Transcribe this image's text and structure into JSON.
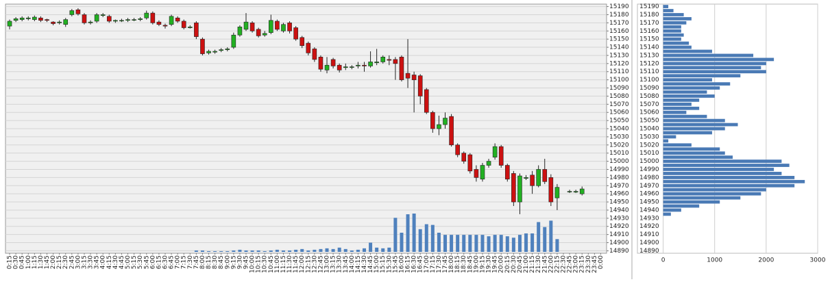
{
  "chart_data": [
    {
      "type": "candlestick",
      "categories": [
        "0:15",
        "0:30",
        "0:45",
        "1:00",
        "1:15",
        "1:30",
        "1:45",
        "2:00",
        "2:15",
        "2:30",
        "2:45",
        "3:00",
        "3:15",
        "3:30",
        "3:45",
        "4:00",
        "4:15",
        "4:30",
        "4:45",
        "5:00",
        "5:15",
        "5:30",
        "5:45",
        "6:00",
        "6:15",
        "6:30",
        "6:45",
        "7:00",
        "7:15",
        "7:30",
        "7:45",
        "8:00",
        "8:15",
        "8:30",
        "8:45",
        "9:00",
        "9:15",
        "9:30",
        "9:45",
        "10:00",
        "10:15",
        "10:30",
        "10:45",
        "11:00",
        "11:15",
        "11:30",
        "11:45",
        "12:00",
        "12:15",
        "12:30",
        "12:45",
        "13:00",
        "13:15",
        "13:30",
        "13:45",
        "14:00",
        "14:15",
        "14:30",
        "14:45",
        "15:00",
        "15:15",
        "15:30",
        "15:45",
        "16:00",
        "16:15",
        "16:30",
        "16:45",
        "17:00",
        "17:15",
        "17:30",
        "17:45",
        "18:00",
        "18:15",
        "18:30",
        "18:45",
        "19:00",
        "19:15",
        "19:30",
        "19:45",
        "20:00",
        "20:15",
        "20:30",
        "20:45",
        "21:00",
        "21:15",
        "21:30",
        "21:45",
        "22:00",
        "22:15",
        "22:30",
        "22:45",
        "23:00",
        "23:15",
        "23:30",
        "23:45",
        "0:00"
      ],
      "open": [
        15166,
        15173,
        15174,
        15175,
        15174,
        15176,
        15174,
        15171,
        15170,
        15168,
        15180,
        15186,
        15180,
        15170,
        15172,
        15179,
        15178,
        15172,
        15173,
        15173,
        15174,
        15174,
        15176,
        15182,
        15171,
        15167,
        15168,
        15176,
        15172,
        15164,
        15170,
        15150,
        15133,
        15134,
        15136,
        15137,
        15140,
        15155,
        15162,
        15170,
        15162,
        15155,
        15158,
        15172,
        15160,
        15170,
        15164,
        15152,
        15145,
        15138,
        15128,
        15112,
        15125,
        15118,
        15115,
        15116,
        15117,
        15118,
        15117,
        15121,
        15122,
        15125,
        15125,
        15128,
        15108,
        15106,
        15105,
        15088,
        15060,
        15040,
        15045,
        15055,
        15020,
        15010,
        15008,
        14990,
        14978,
        14995,
        15005,
        15018,
        14995,
        14985,
        14950,
        14979,
        14983,
        14970,
        14990,
        14980,
        14955,
        null,
        14963,
        14962,
        14960,
        null,
        null,
        null
      ],
      "high": [
        15174,
        15177,
        15178,
        15178,
        15179,
        15178,
        15175,
        15172,
        15173,
        15176,
        15187,
        15188,
        15182,
        15173,
        15182,
        15182,
        15180,
        15174,
        15175,
        15176,
        15176,
        15177,
        15185,
        15184,
        15173,
        15169,
        15180,
        15178,
        15174,
        15167,
        15172,
        15152,
        15137,
        15137,
        15139,
        15140,
        15158,
        15167,
        15182,
        15172,
        15164,
        15160,
        15180,
        15174,
        15170,
        15172,
        15166,
        15154,
        15147,
        15140,
        15130,
        15128,
        15127,
        15120,
        15120,
        15118,
        15122,
        15122,
        15135,
        15138,
        15130,
        15130,
        15128,
        15130,
        15150,
        15110,
        15107,
        15090,
        15062,
        15056,
        15060,
        15058,
        15022,
        15012,
        15010,
        14995,
        14998,
        15003,
        15022,
        15020,
        14997,
        14988,
        14985,
        14983,
        14988,
        14995,
        15003,
        14984,
        14972,
        null,
        14965,
        14965,
        14969,
        null,
        null,
        null
      ],
      "low": [
        15162,
        15171,
        15172,
        15173,
        15172,
        15171,
        15171,
        15167,
        15168,
        15165,
        15178,
        15179,
        15168,
        15168,
        15170,
        15177,
        15170,
        15170,
        15171,
        15171,
        15172,
        15172,
        15174,
        15168,
        15166,
        15163,
        15166,
        15170,
        15162,
        15163,
        15150,
        15130,
        15131,
        15132,
        15134,
        15135,
        15138,
        15153,
        15160,
        15158,
        15152,
        15153,
        15156,
        15160,
        15158,
        15157,
        15148,
        15139,
        15130,
        15122,
        15110,
        15108,
        15114,
        15109,
        15112,
        15113,
        15114,
        15110,
        15115,
        15118,
        15120,
        15118,
        15100,
        15098,
        15090,
        15060,
        15070,
        15058,
        15035,
        15032,
        15040,
        15018,
        15005,
        14997,
        14985,
        14975,
        14975,
        14992,
        15002,
        14992,
        14975,
        14945,
        14935,
        14977,
        14960,
        14968,
        14972,
        14945,
        14940,
        null,
        14961,
        14961,
        14958,
        null,
        null,
        null
      ],
      "close": [
        15172,
        15175,
        15176,
        15176,
        15177,
        15173,
        15173,
        15169,
        15171,
        15174,
        15185,
        15181,
        15170,
        15171,
        15180,
        15180,
        15172,
        15173,
        15173,
        15174,
        15174,
        15175,
        15182,
        15170,
        15168,
        15166,
        15178,
        15172,
        15164,
        15165,
        15153,
        15132,
        15135,
        15135,
        15137,
        15138,
        15155,
        15165,
        15171,
        15160,
        15154,
        15157,
        15173,
        15162,
        15168,
        15160,
        15150,
        15142,
        15133,
        15125,
        15113,
        15118,
        15117,
        15112,
        15116,
        15116,
        15118,
        15117,
        15122,
        15122,
        15128,
        15124,
        15120,
        15100,
        15102,
        15100,
        15080,
        15060,
        15040,
        15045,
        15053,
        15020,
        15008,
        15000,
        14988,
        14980,
        14995,
        15000,
        15018,
        14995,
        14978,
        14950,
        14982,
        14980,
        14970,
        14990,
        14975,
        14950,
        14968,
        null,
        14963,
        14963,
        14966,
        null,
        null,
        null
      ],
      "volume": [
        0,
        0,
        0,
        0,
        0,
        0,
        0,
        0,
        0,
        0,
        0,
        0,
        0,
        0,
        0,
        0,
        0,
        0,
        0,
        0,
        0,
        0,
        0,
        0,
        0,
        0,
        0,
        0,
        0,
        0,
        2,
        2,
        1,
        1,
        1,
        1,
        2,
        3,
        2,
        2,
        2,
        1,
        2,
        3,
        2,
        2,
        3,
        4,
        2,
        3,
        4,
        5,
        4,
        6,
        4,
        2,
        3,
        5,
        13,
        6,
        5,
        6,
        48,
        27,
        53,
        54,
        32,
        39,
        38,
        27,
        24,
        24,
        24,
        24,
        24,
        24,
        24,
        22,
        24,
        24,
        22,
        20,
        24,
        26,
        26,
        42,
        35,
        44,
        18,
        0,
        0,
        0,
        0,
        0,
        0,
        0
      ],
      "up_color": "#22b022",
      "down_color": "#cc1111",
      "volume_color": "#4f81bd",
      "ylim": [
        14887,
        15193
      ],
      "yticks": [
        15190,
        15180,
        15170,
        15160,
        15150,
        15140,
        15130,
        15120,
        15110,
        15100,
        15090,
        15080,
        15070,
        15060,
        15050,
        15040,
        15030,
        15020,
        15010,
        15000,
        14990,
        14980,
        14970,
        14960,
        14950,
        14940,
        14930,
        14920,
        14910,
        14900,
        14890
      ],
      "grid": true
    },
    {
      "type": "hbar",
      "categories": [
        15190,
        15185,
        15180,
        15175,
        15170,
        15165,
        15160,
        15155,
        15150,
        15145,
        15140,
        15135,
        15130,
        15125,
        15120,
        15115,
        15110,
        15105,
        15100,
        15095,
        15090,
        15085,
        15080,
        15075,
        15070,
        15065,
        15060,
        15055,
        15050,
        15045,
        15040,
        15035,
        15030,
        15025,
        15020,
        15015,
        15010,
        15005,
        15000,
        14995,
        14990,
        14985,
        14980,
        14975,
        14970,
        14965,
        14960,
        14955,
        14950,
        14945,
        14940,
        14935
      ],
      "values": [
        100,
        200,
        400,
        550,
        450,
        350,
        350,
        400,
        350,
        500,
        550,
        950,
        1750,
        2150,
        2000,
        1900,
        2000,
        1500,
        950,
        1300,
        1100,
        850,
        1000,
        700,
        550,
        700,
        450,
        850,
        1200,
        1450,
        1200,
        950,
        250,
        100,
        550,
        1100,
        1200,
        1350,
        2300,
        2450,
        2150,
        2300,
        2550,
        2750,
        2550,
        2000,
        1900,
        1500,
        1100,
        700,
        350,
        150
      ],
      "color": "#4a7ab5",
      "ylim": [
        14887,
        15193
      ],
      "yticks": [
        15190,
        15180,
        15170,
        15160,
        15150,
        15140,
        15130,
        15120,
        15110,
        15100,
        15090,
        15080,
        15070,
        15060,
        15050,
        15040,
        15030,
        15020,
        15010,
        15000,
        14990,
        14980,
        14970,
        14960,
        14950,
        14940,
        14930,
        14920,
        14910,
        14900,
        14890
      ],
      "xlim": [
        -500,
        3000
      ],
      "xticks": [
        0,
        1000,
        2000,
        3000
      ],
      "grid": true
    }
  ]
}
